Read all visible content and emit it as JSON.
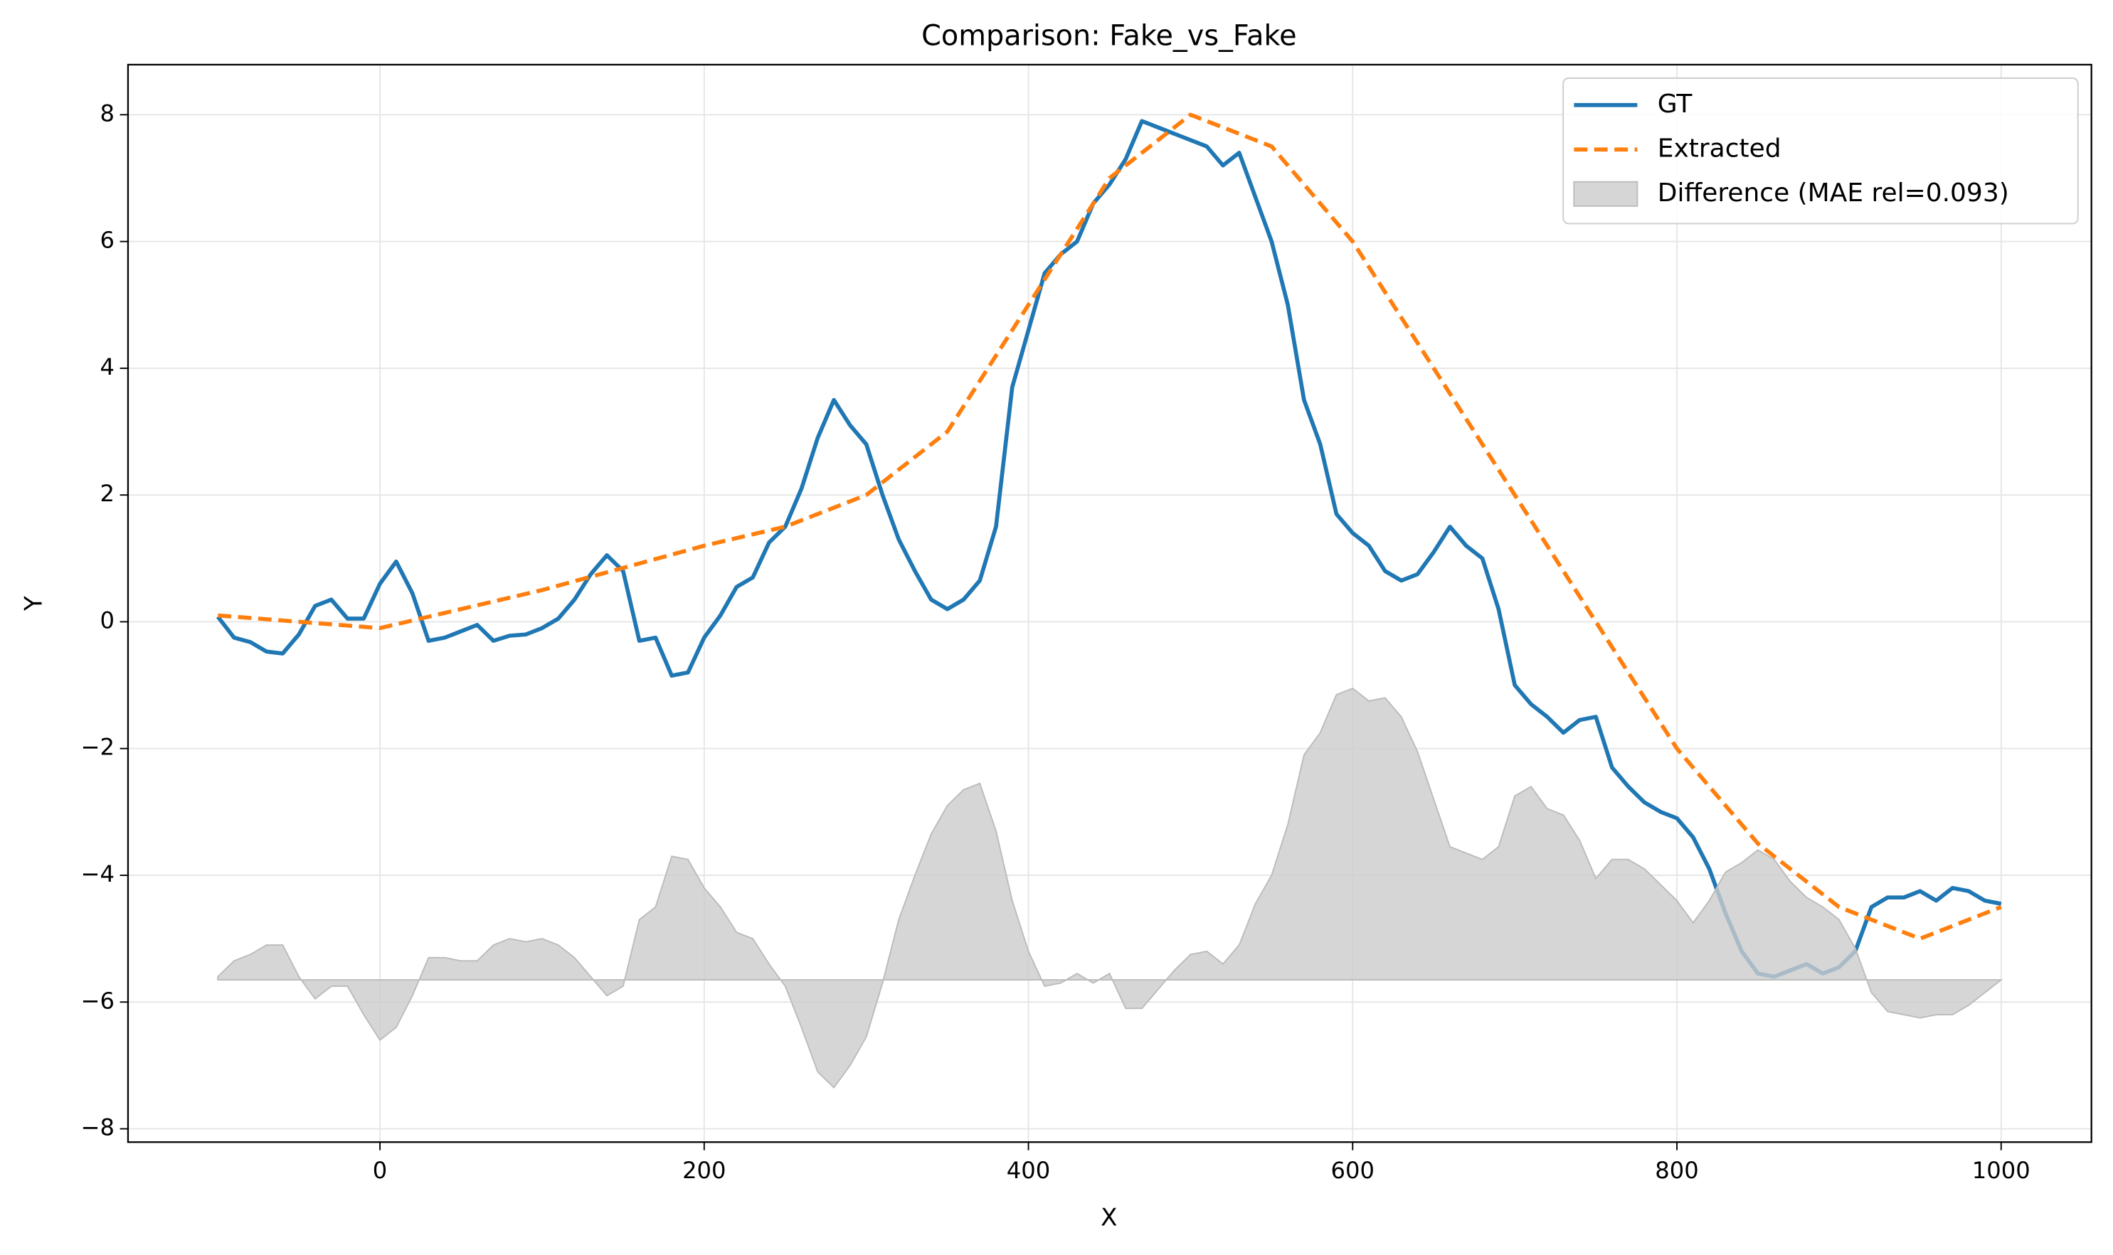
{
  "chart_data": {
    "type": "line",
    "title": "Comparison: Fake_vs_Fake",
    "x_label": "X",
    "y_label": "Y",
    "xlim": [
      -155.4,
      1055.7
    ],
    "ylim": [
      -8.21,
      8.79
    ],
    "xticks": [
      0,
      200,
      400,
      600,
      800,
      1000
    ],
    "yticks": [
      {
        "value": -8,
        "label": "−8"
      },
      {
        "value": -6,
        "label": "−6"
      },
      {
        "value": -4,
        "label": "−4"
      },
      {
        "value": -2,
        "label": "−2"
      },
      0,
      2,
      4,
      6,
      8
    ],
    "grid": true,
    "legend": "upper right",
    "series": [
      {
        "name": "GT",
        "color": "#1f77b4",
        "style": "solid",
        "x": [
          -100,
          -90,
          -80,
          -70,
          -60,
          -50,
          -40,
          -30,
          -20,
          -10,
          0,
          10,
          20,
          30,
          40,
          50,
          60,
          70,
          80,
          90,
          100,
          110,
          120,
          130,
          140,
          150,
          160,
          170,
          180,
          190,
          200,
          210,
          220,
          230,
          240,
          250,
          260,
          270,
          280,
          290,
          300,
          310,
          320,
          330,
          340,
          350,
          360,
          370,
          380,
          390,
          400,
          410,
          420,
          430,
          440,
          450,
          460,
          470,
          480,
          490,
          500,
          510,
          520,
          530,
          540,
          550,
          560,
          570,
          580,
          590,
          600,
          610,
          620,
          630,
          640,
          650,
          660,
          670,
          680,
          690,
          700,
          710,
          720,
          730,
          740,
          750,
          760,
          770,
          780,
          790,
          800,
          810,
          820,
          830,
          840,
          850,
          860,
          870,
          880,
          890,
          900,
          910,
          920,
          930,
          940,
          950,
          960,
          970,
          980,
          990,
          1000
        ],
        "values": [
          0.08,
          -0.25,
          -0.32,
          -0.47,
          -0.5,
          -0.2,
          0.25,
          0.35,
          0.05,
          0.05,
          0.6,
          0.95,
          0.45,
          -0.3,
          -0.25,
          -0.15,
          -0.05,
          -0.3,
          -0.22,
          -0.2,
          -0.1,
          0.05,
          0.35,
          0.75,
          1.05,
          0.8,
          -0.3,
          -0.25,
          -0.85,
          -0.8,
          -0.25,
          0.1,
          0.55,
          0.7,
          1.25,
          1.5,
          2.1,
          2.9,
          3.5,
          3.1,
          2.8,
          2.0,
          1.3,
          0.8,
          0.35,
          0.2,
          0.35,
          0.65,
          1.5,
          3.7,
          4.6,
          5.5,
          5.8,
          6.0,
          6.6,
          6.9,
          7.3,
          7.9,
          7.8,
          7.7,
          7.6,
          7.5,
          7.2,
          7.4,
          6.7,
          6.0,
          5.0,
          3.5,
          2.8,
          1.7,
          1.4,
          1.2,
          0.8,
          0.65,
          0.75,
          1.1,
          1.5,
          1.2,
          1.0,
          0.2,
          -1.0,
          -1.3,
          -1.5,
          -1.75,
          -1.55,
          -1.5,
          -2.3,
          -2.6,
          -2.85,
          -3.0,
          -3.1,
          -3.4,
          -3.9,
          -4.6,
          -5.2,
          -5.55,
          -5.6,
          -5.5,
          -5.4,
          -5.55,
          -5.45,
          -5.2,
          -4.5,
          -4.35,
          -4.35,
          -4.25,
          -4.4,
          -4.2,
          -4.25,
          -4.4,
          -4.45
        ]
      },
      {
        "name": "Extracted",
        "color": "#ff7f0e",
        "style": "dashed",
        "x": [
          -100,
          0,
          100,
          200,
          250,
          300,
          350,
          400,
          450,
          500,
          550,
          600,
          650,
          700,
          750,
          800,
          850,
          900,
          950,
          1000
        ],
        "values": [
          0.1,
          -0.1,
          0.5,
          1.2,
          1.5,
          2.0,
          3.0,
          5.0,
          7.0,
          8.0,
          7.5,
          6.0,
          4.0,
          2.0,
          0.0,
          -2.0,
          -3.5,
          -4.5,
          -5.0,
          -4.5
        ]
      },
      {
        "name": "Difference (MAE rel=0.093)",
        "color": "#cccccc",
        "style": "area",
        "baseline": -5.65,
        "x": [
          -100,
          -90,
          -80,
          -70,
          -60,
          -50,
          -40,
          -30,
          -20,
          -10,
          0,
          10,
          20,
          30,
          40,
          50,
          60,
          70,
          80,
          90,
          100,
          110,
          120,
          130,
          140,
          150,
          160,
          170,
          180,
          190,
          200,
          210,
          220,
          230,
          240,
          250,
          260,
          270,
          280,
          290,
          300,
          310,
          320,
          330,
          340,
          350,
          360,
          370,
          380,
          390,
          400,
          410,
          420,
          430,
          440,
          450,
          460,
          470,
          480,
          490,
          500,
          510,
          520,
          530,
          540,
          550,
          560,
          570,
          580,
          590,
          600,
          610,
          620,
          630,
          640,
          650,
          660,
          670,
          680,
          690,
          700,
          710,
          720,
          730,
          740,
          750,
          760,
          770,
          780,
          790,
          800,
          810,
          820,
          830,
          840,
          850,
          860,
          870,
          880,
          890,
          900,
          910,
          920,
          930,
          940,
          950,
          960,
          970,
          980,
          990,
          1000
        ],
        "values": [
          -5.6,
          -5.35,
          -5.25,
          -5.1,
          -5.1,
          -5.6,
          -5.95,
          -5.75,
          -5.75,
          -6.2,
          -6.6,
          -6.4,
          -5.9,
          -5.3,
          -5.3,
          -5.35,
          -5.35,
          -5.1,
          -5.0,
          -5.05,
          -5.0,
          -5.1,
          -5.3,
          -5.6,
          -5.9,
          -5.75,
          -4.7,
          -4.5,
          -3.7,
          -3.75,
          -4.2,
          -4.5,
          -4.9,
          -5.0,
          -5.4,
          -5.75,
          -6.4,
          -7.1,
          -7.35,
          -7.0,
          -6.55,
          -5.7,
          -4.7,
          -4.0,
          -3.35,
          -2.9,
          -2.65,
          -2.55,
          -3.3,
          -4.4,
          -5.2,
          -5.75,
          -5.7,
          -5.55,
          -5.7,
          -5.55,
          -6.1,
          -6.1,
          -5.8,
          -5.5,
          -5.25,
          -5.2,
          -5.4,
          -5.1,
          -4.45,
          -4.0,
          -3.2,
          -2.1,
          -1.75,
          -1.15,
          -1.05,
          -1.25,
          -1.2,
          -1.5,
          -2.05,
          -2.8,
          -3.55,
          -3.65,
          -3.75,
          -3.55,
          -2.75,
          -2.6,
          -2.95,
          -3.05,
          -3.45,
          -4.05,
          -3.75,
          -3.75,
          -3.9,
          -4.15,
          -4.4,
          -4.75,
          -4.4,
          -3.95,
          -3.8,
          -3.6,
          -3.75,
          -4.1,
          -4.35,
          -4.5,
          -4.7,
          -5.15,
          -5.85,
          -6.15,
          -6.2,
          -6.25,
          -6.2,
          -6.2,
          -6.05,
          -5.85,
          -5.65
        ]
      }
    ]
  }
}
